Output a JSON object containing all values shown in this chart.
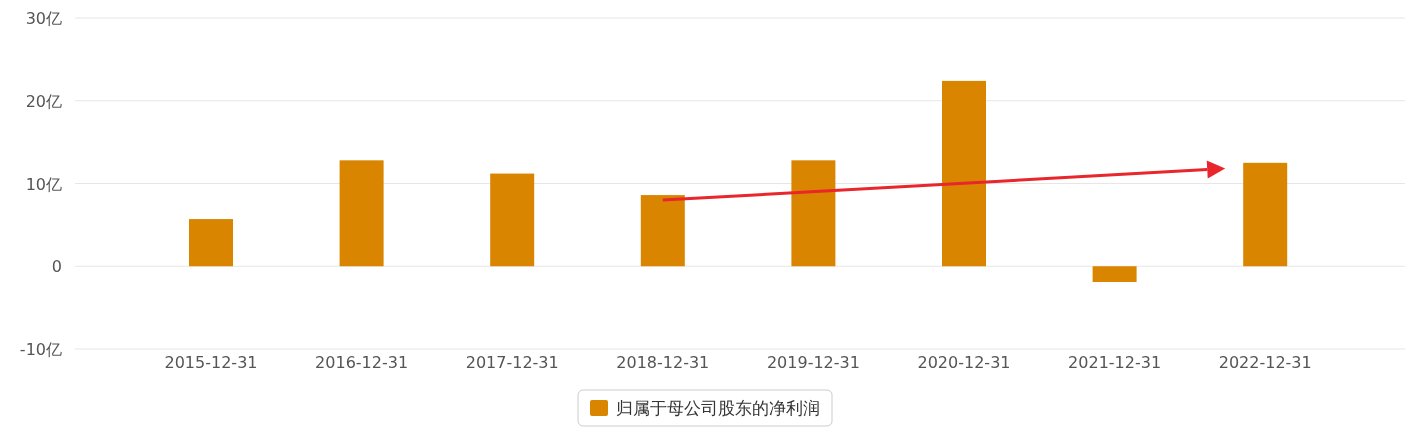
{
  "chart_data": {
    "type": "bar",
    "categories": [
      "2015-12-31",
      "2016-12-31",
      "2017-12-31",
      "2018-12-31",
      "2019-12-31",
      "2020-12-31",
      "2021-12-31",
      "2022-12-31"
    ],
    "series": [
      {
        "name": "归属于母公司股东的净利润",
        "color": "#d98500",
        "values": [
          5.7,
          12.8,
          11.2,
          8.6,
          12.8,
          22.4,
          -1.9,
          12.5
        ]
      }
    ],
    "ylim": [
      -10,
      30
    ],
    "yticks": [
      {
        "value": -10,
        "label": "-10亿"
      },
      0,
      {
        "value": 10,
        "label": "10亿"
      },
      {
        "value": 20,
        "label": "20亿"
      },
      {
        "value": 30,
        "label": "30亿"
      }
    ],
    "grid": "y",
    "legend": "bottom"
  }
}
